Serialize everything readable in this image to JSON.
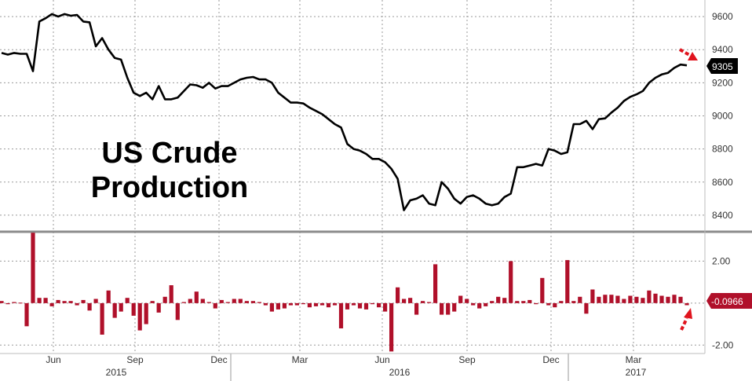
{
  "chart_data": [
    {
      "type": "line",
      "title": "US Crude Production",
      "title_lines": [
        "US Crude",
        "Production"
      ],
      "ylim": [
        8300,
        9700
      ],
      "y_ticks": [
        8400,
        8600,
        8800,
        9000,
        9200,
        9400,
        9600
      ],
      "last_value_label": "9305",
      "series": [
        {
          "values": [
            9380,
            9370,
            9380,
            9375,
            9375,
            9270,
            9570,
            9590,
            9615,
            9600,
            9615,
            9605,
            9610,
            9570,
            9565,
            9420,
            9470,
            9400,
            9350,
            9340,
            9230,
            9140,
            9120,
            9140,
            9100,
            9180,
            9100,
            9100,
            9110,
            9150,
            9190,
            9185,
            9170,
            9200,
            9165,
            9180,
            9180,
            9200,
            9220,
            9230,
            9235,
            9220,
            9220,
            9200,
            9140,
            9110,
            9080,
            9080,
            9075,
            9050,
            9030,
            9010,
            8980,
            8950,
            8930,
            8830,
            8800,
            8790,
            8770,
            8740,
            8740,
            8720,
            8680,
            8620,
            8430,
            8490,
            8500,
            8520,
            8470,
            8460,
            8600,
            8560,
            8500,
            8470,
            8510,
            8520,
            8500,
            8470,
            8460,
            8470,
            8510,
            8530,
            8690,
            8690,
            8700,
            8710,
            8700,
            8800,
            8790,
            8770,
            8780,
            8950,
            8950,
            8970,
            8920,
            8980,
            8985,
            9020,
            9050,
            9090,
            9115,
            9130,
            9150,
            9200,
            9230,
            9250,
            9260,
            9290,
            9310,
            9305
          ]
        }
      ]
    },
    {
      "type": "bar",
      "ylim": [
        -2.4,
        3.4
      ],
      "y_ticks": [
        -2.0,
        2.0
      ],
      "y_tick_labels": [
        "-2.00",
        "2.00"
      ],
      "last_value_label": "-0.0966",
      "series": [
        {
          "values": [
            0.1,
            -0.05,
            0.05,
            0.02,
            -1.1,
            3.35,
            0.25,
            0.25,
            -0.15,
            0.15,
            0.1,
            0.1,
            -0.1,
            0.15,
            -0.35,
            0.2,
            -1.5,
            0.6,
            -0.7,
            -0.4,
            0.25,
            -0.6,
            -1.3,
            -1.0,
            0.1,
            -0.45,
            0.3,
            0.85,
            -0.8,
            0.05,
            0.2,
            0.55,
            0.2,
            0.05,
            -0.25,
            0.15,
            0.05,
            0.2,
            0.2,
            0.1,
            0.1,
            0.05,
            -0.1,
            -0.4,
            -0.3,
            -0.25,
            -0.1,
            -0.1,
            -0.05,
            -0.2,
            -0.15,
            -0.1,
            -0.2,
            -0.1,
            -1.2,
            -0.3,
            -0.1,
            -0.25,
            -0.3,
            -0.05,
            -0.2,
            -0.4,
            -2.3,
            0.75,
            0.2,
            0.25,
            -0.55,
            0.1,
            0.05,
            1.85,
            -0.55,
            -0.55,
            -0.4,
            0.35,
            0.2,
            -0.1,
            -0.25,
            -0.15,
            0.1,
            0.3,
            0.25,
            2.0,
            0.1,
            0.1,
            0.15,
            -0.05,
            1.2,
            -0.1,
            -0.2,
            0.1,
            2.05,
            0.1,
            0.3,
            -0.5,
            0.65,
            0.3,
            0.4,
            0.4,
            0.35,
            0.2,
            0.35,
            0.3,
            0.25,
            0.6,
            0.45,
            0.35,
            0.3,
            0.4,
            0.3,
            -0.0966
          ]
        }
      ]
    }
  ],
  "x_axis": {
    "month_labels": [
      "Jun",
      "Sep",
      "Dec",
      "Mar",
      "Jun",
      "Sep",
      "Dec",
      "Mar"
    ],
    "year_labels": [
      "2015",
      "2016",
      "2017"
    ]
  },
  "colors": {
    "line": "#000000",
    "bars": "#b0102a",
    "grid": "#9a9a9a",
    "panel_divider": "#8c8c8c",
    "label_box": "#000000",
    "arrow": "#e0141e"
  }
}
